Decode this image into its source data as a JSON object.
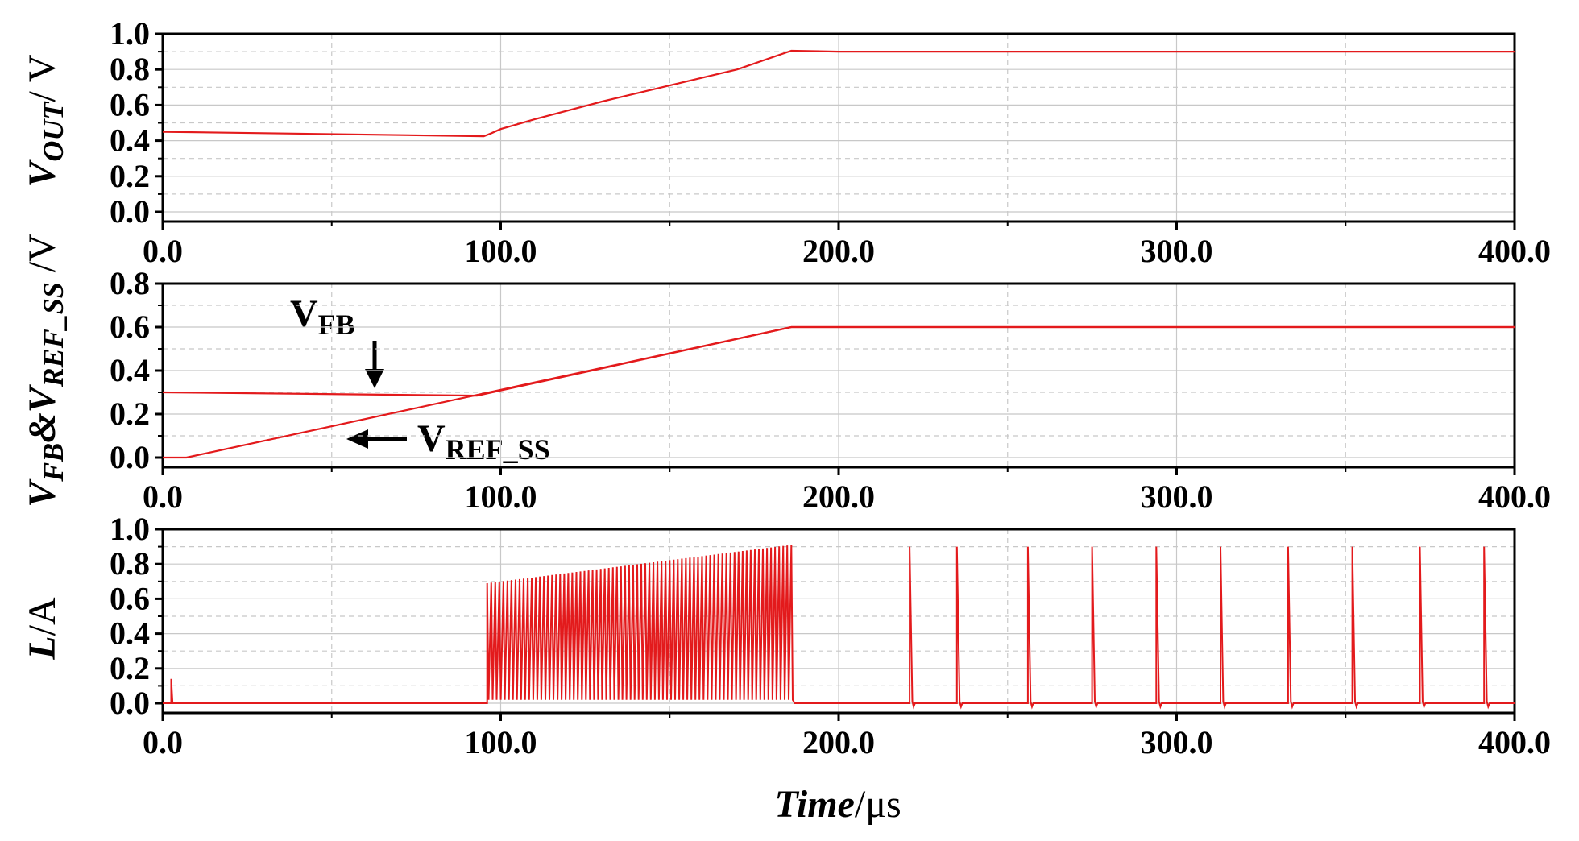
{
  "chart_data": [
    {
      "type": "line",
      "panel": "top",
      "ylabel_main": "V",
      "ylabel_sub": "OUT",
      "ylabel_unit": "/ V",
      "xlim": [
        0,
        400
      ],
      "ylim": [
        0,
        1.0
      ],
      "yticks": [
        "0.0",
        "0.2",
        "0.4",
        "0.6",
        "0.8",
        "1.0"
      ],
      "ytick_values": [
        0,
        0.2,
        0.4,
        0.6,
        0.8,
        1.0
      ],
      "xticks": [
        "0.0",
        "100.0",
        "200.0",
        "300.0",
        "400.0"
      ],
      "xtick_values": [
        0,
        100,
        200,
        300,
        400
      ],
      "grid": true,
      "series": [
        {
          "name": "VOUT",
          "color": "#e31a1c",
          "x": [
            0,
            95,
            97,
            100,
            110,
            130,
            150,
            170,
            186,
            200,
            300,
            400
          ],
          "y": [
            0.45,
            0.425,
            0.44,
            0.465,
            0.52,
            0.62,
            0.71,
            0.8,
            0.905,
            0.9,
            0.9,
            0.9
          ]
        }
      ]
    },
    {
      "type": "line",
      "panel": "middle",
      "ylabel_main1": "V",
      "ylabel_sub1": "FB",
      "ylabel_amp": "&",
      "ylabel_main2": "V",
      "ylabel_sub2": "REF_SS",
      "ylabel_unit": " /V",
      "xlim": [
        0,
        400
      ],
      "ylim": [
        0,
        0.8
      ],
      "yticks": [
        "0.0",
        "0.2",
        "0.4",
        "0.6",
        "0.8"
      ],
      "ytick_values": [
        0,
        0.2,
        0.4,
        0.6,
        0.8
      ],
      "xticks": [
        "0.0",
        "100.0",
        "200.0",
        "300.0",
        "400.0"
      ],
      "xtick_values": [
        0,
        100,
        200,
        300,
        400
      ],
      "grid": true,
      "annotations": [
        {
          "main": "V",
          "sub": "FB"
        },
        {
          "main": "V",
          "sub": "REF_SS"
        }
      ],
      "series": [
        {
          "name": "VFB",
          "color": "#e31a1c",
          "x": [
            0,
            93,
            186,
            400
          ],
          "y": [
            0.3,
            0.285,
            0.6,
            0.6
          ]
        },
        {
          "name": "VREF_SS",
          "color": "#e31a1c",
          "x": [
            0,
            7,
            186,
            400
          ],
          "y": [
            0.0,
            0.0,
            0.6,
            0.6
          ]
        }
      ]
    },
    {
      "type": "line",
      "panel": "bottom",
      "ylabel_main": "L",
      "ylabel_unit": "/A",
      "xlabel_main": "Time",
      "xlabel_unit": "/μs",
      "xlim": [
        0,
        400
      ],
      "ylim": [
        0,
        1.0
      ],
      "yticks": [
        "0.0",
        "0.2",
        "0.4",
        "0.6",
        "0.8",
        "1.0"
      ],
      "ytick_values": [
        0,
        0.2,
        0.4,
        0.6,
        0.8,
        1.0
      ],
      "xticks": [
        "0.0",
        "100.0",
        "200.0",
        "300.0",
        "400.0"
      ],
      "xtick_values": [
        0,
        100,
        200,
        300,
        400
      ],
      "grid": true,
      "series": [
        {
          "name": "IL",
          "color": "#e31a1c",
          "burst": {
            "x_start": 96,
            "x_end": 186,
            "pulses": 75,
            "peak_start": 0.69,
            "peak_end": 0.91
          },
          "spikes_x": [
            2.5,
            221,
            235,
            256,
            275,
            294,
            313,
            333,
            352,
            372,
            391
          ],
          "spikes_y": [
            0.14,
            0.9,
            0.9,
            0.9,
            0.9,
            0.9,
            0.9,
            0.9,
            0.9,
            0.9,
            0.9
          ]
        }
      ]
    }
  ]
}
